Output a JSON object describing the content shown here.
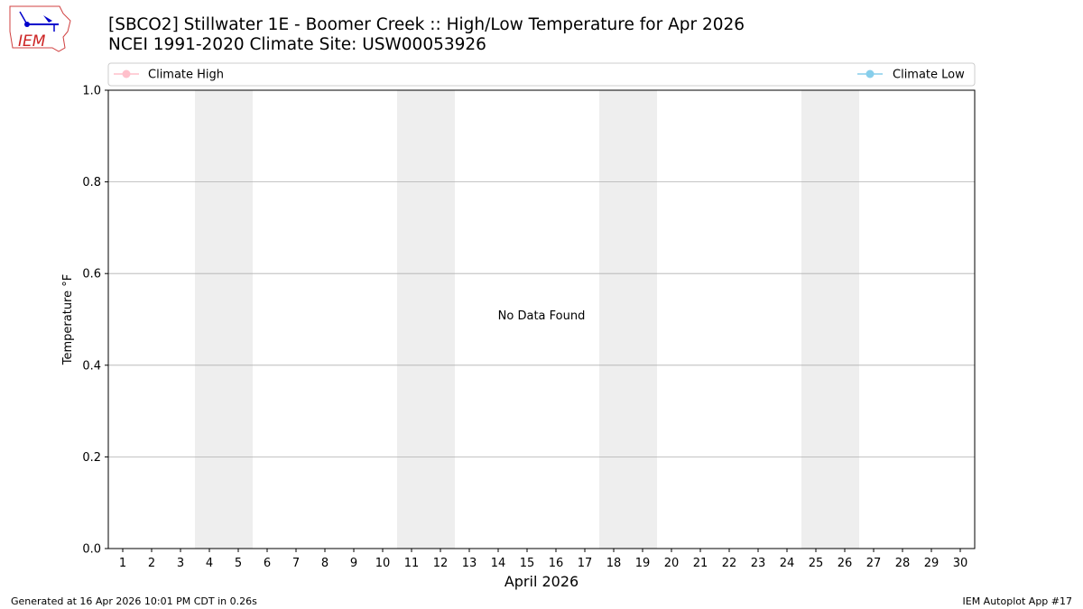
{
  "header": {
    "title_line1": "[SBCO2] Stillwater 1E - Boomer Creek :: High/Low Temperature for Apr 2026",
    "title_line2": "NCEI 1991-2020 Climate Site: USW00053926",
    "logo_text": "IEM"
  },
  "footer": {
    "left": "Generated at 16 Apr 2026 10:01 PM CDT in 0.26s",
    "right": "IEM Autoplot App #17"
  },
  "chart_data": {
    "type": "line",
    "title": "[SBCO2] Stillwater 1E - Boomer Creek :: High/Low Temperature for Apr 2026",
    "xlabel": "April 2026",
    "ylabel": "Temperature °F",
    "xlim": [
      0.5,
      30.5
    ],
    "ylim": [
      0,
      1
    ],
    "x_ticks": [
      1,
      2,
      3,
      4,
      5,
      6,
      7,
      8,
      9,
      10,
      11,
      12,
      13,
      14,
      15,
      16,
      17,
      18,
      19,
      20,
      21,
      22,
      23,
      24,
      25,
      26,
      27,
      28,
      29,
      30
    ],
    "y_ticks": [
      "0.0",
      "0.2",
      "0.4",
      "0.6",
      "0.8",
      "1.0"
    ],
    "y_tick_values": [
      0,
      0.2,
      0.4,
      0.6,
      0.8,
      1.0
    ],
    "grid": "horizontal",
    "shaded_weekends": [
      [
        3.5,
        5.5
      ],
      [
        10.5,
        12.5
      ],
      [
        17.5,
        19.5
      ],
      [
        24.5,
        26.5
      ]
    ],
    "annotation": "No Data Found",
    "legend_placement": "top",
    "series": [
      {
        "name": "Climate High",
        "color": "#ffc0cb",
        "values": []
      },
      {
        "name": "Climate Low",
        "color": "#87ceeb",
        "values": []
      }
    ],
    "colors": {
      "shade": "#eeeeee",
      "grid": "#b0b0b0"
    }
  }
}
